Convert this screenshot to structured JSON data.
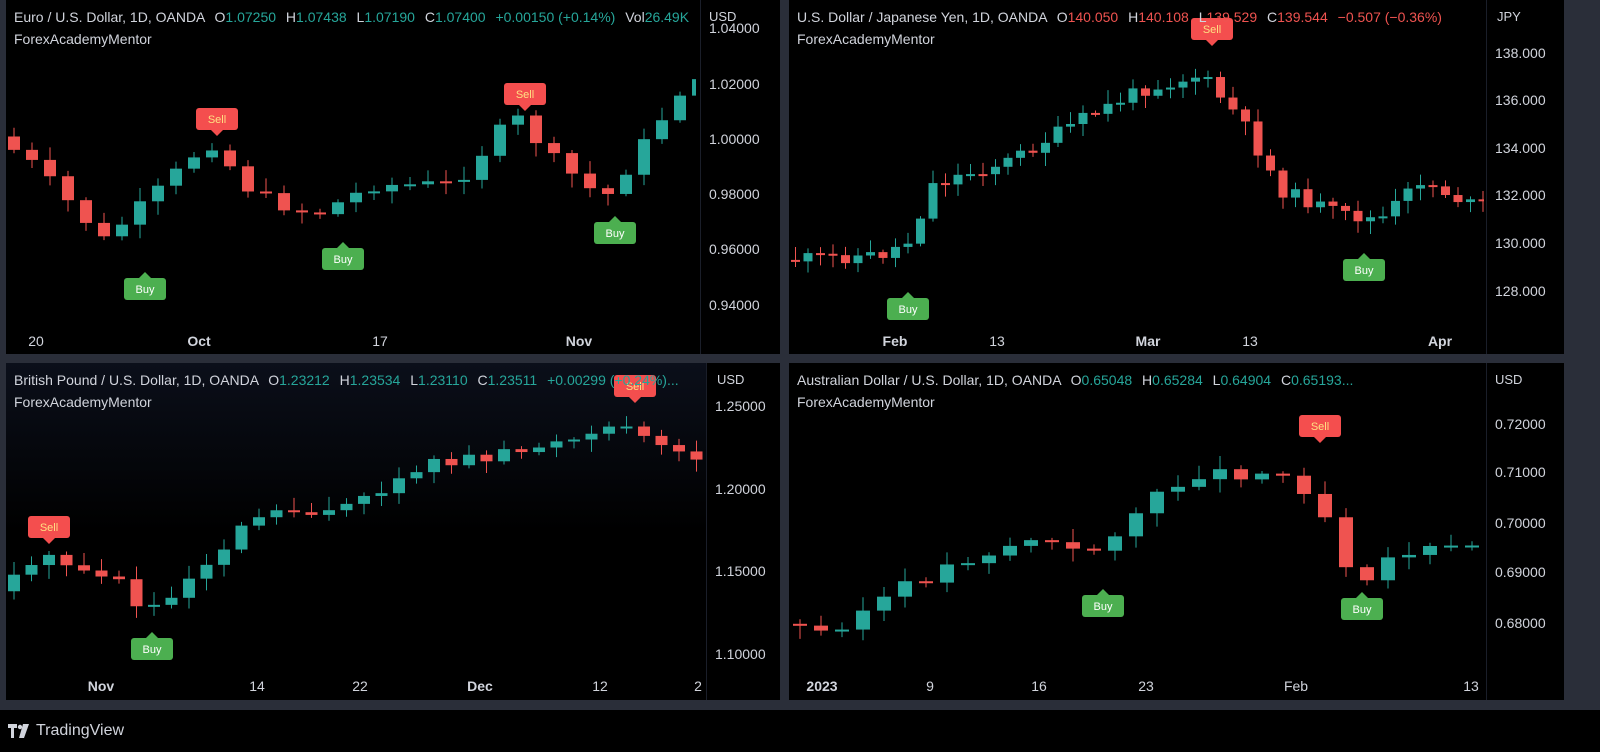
{
  "colors": {
    "up": "#26a69a",
    "down": "#ef5350",
    "buy": "#4caf50",
    "sell": "#f44e4e"
  },
  "panes": [
    {
      "symbol": "Euro / U.S. Dollar, 1D, OANDA",
      "o": "1.07250",
      "h": "1.07438",
      "l": "1.07190",
      "c": "1.07400",
      "chg": "+0.00150 (+0.14%)",
      "vol": "26.49K",
      "dir": "up",
      "author": "ForexAcademyMentor",
      "currency": "USD",
      "y_ticks": [
        "1.04000",
        "1.02000",
        "1.00000",
        "0.98000",
        "0.96000",
        "0.94000"
      ],
      "x_ticks": [
        "20",
        "Oct",
        "17",
        "Nov"
      ],
      "signals": [
        {
          "type": "Sell",
          "label": "Sell"
        },
        {
          "type": "Sell",
          "label": "Sell"
        },
        {
          "type": "Buy",
          "label": "Buy"
        },
        {
          "type": "Buy",
          "label": "Buy"
        },
        {
          "type": "Buy",
          "label": "Buy"
        }
      ]
    },
    {
      "symbol": "U.S. Dollar / Japanese Yen, 1D, OANDA",
      "o": "140.050",
      "h": "140.108",
      "l": "139.529",
      "c": "139.544",
      "chg": "−0.507 (−0.36%)",
      "dir": "down",
      "author": "ForexAcademyMentor",
      "currency": "JPY",
      "y_ticks": [
        "138.000",
        "136.000",
        "134.000",
        "132.000",
        "130.000",
        "128.000"
      ],
      "x_ticks": [
        "Feb",
        "13",
        "Mar",
        "13",
        "Apr"
      ],
      "signals": [
        {
          "type": "Sell",
          "label": "Sell"
        },
        {
          "type": "Buy",
          "label": "Buy"
        },
        {
          "type": "Buy",
          "label": "Buy"
        }
      ]
    },
    {
      "symbol": "British Pound / U.S. Dollar, 1D, OANDA",
      "o": "1.23212",
      "h": "1.23534",
      "l": "1.23110",
      "c": "1.23511",
      "chg": "+0.00299 (+0.24%)...",
      "dir": "up",
      "author": "ForexAcademyMentor",
      "currency": "USD",
      "y_ticks": [
        "1.25000",
        "1.20000",
        "1.15000",
        "1.10000"
      ],
      "x_ticks": [
        "Nov",
        "14",
        "22",
        "Dec",
        "12",
        "2"
      ],
      "signals": [
        {
          "type": "Sell",
          "label": "Sell"
        },
        {
          "type": "Sell",
          "label": "Sell"
        },
        {
          "type": "Buy",
          "label": "Buy"
        }
      ]
    },
    {
      "symbol": "Australian Dollar / U.S. Dollar, 1D, OANDA",
      "o": "0.65048",
      "h": "0.65284",
      "l": "0.64904",
      "c": "0.65193...",
      "dir": "up",
      "author": "ForexAcademyMentor",
      "currency": "USD",
      "y_ticks": [
        "0.72000",
        "0.71000",
        "0.70000",
        "0.69000",
        "0.68000"
      ],
      "x_ticks": [
        "2023",
        "9",
        "16",
        "23",
        "Feb",
        "13"
      ],
      "signals": [
        {
          "type": "Sell",
          "label": "Sell"
        },
        {
          "type": "Buy",
          "label": "Buy"
        },
        {
          "type": "Buy",
          "label": "Buy"
        }
      ]
    }
  ],
  "footer": {
    "brand": "TradingView"
  },
  "labels": {
    "o": "O",
    "h": "H",
    "l": "L",
    "c": "C",
    "vol": "Vol"
  }
}
